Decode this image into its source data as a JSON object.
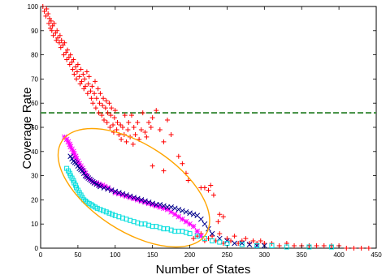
{
  "chart_data": {
    "type": "scatter",
    "xlabel": "Number of States",
    "ylabel": "Coverage Rate",
    "xlim": [
      0,
      450
    ],
    "ylim": [
      0,
      100
    ],
    "xticks": [
      "0",
      "50",
      "100",
      "150",
      "200",
      "250",
      "300",
      "350",
      "400",
      "450"
    ],
    "yticks": [
      "0",
      "10",
      "20",
      "30",
      "40",
      "50",
      "60",
      "70",
      "80",
      "90",
      "100"
    ],
    "grid": false,
    "series": [
      {
        "marker": "plus",
        "color": "#ff0000",
        "points": [
          [
            3,
            100
          ],
          [
            5,
            98
          ],
          [
            7,
            96
          ],
          [
            8,
            99
          ],
          [
            10,
            97
          ],
          [
            11,
            93
          ],
          [
            12,
            95
          ],
          [
            13,
            91
          ],
          [
            14,
            94
          ],
          [
            15,
            90
          ],
          [
            16,
            92
          ],
          [
            17,
            88
          ],
          [
            18,
            93
          ],
          [
            20,
            89
          ],
          [
            21,
            86
          ],
          [
            22,
            90
          ],
          [
            23,
            87
          ],
          [
            25,
            85
          ],
          [
            26,
            88
          ],
          [
            27,
            83
          ],
          [
            28,
            86
          ],
          [
            30,
            84
          ],
          [
            31,
            80
          ],
          [
            32,
            85
          ],
          [
            34,
            81
          ],
          [
            35,
            78
          ],
          [
            36,
            82
          ],
          [
            38,
            79
          ],
          [
            39,
            76
          ],
          [
            40,
            80
          ],
          [
            42,
            77
          ],
          [
            43,
            74
          ],
          [
            44,
            78
          ],
          [
            45,
            72
          ],
          [
            47,
            75
          ],
          [
            48,
            70
          ],
          [
            49,
            73
          ],
          [
            50,
            76
          ],
          [
            52,
            71
          ],
          [
            53,
            68
          ],
          [
            54,
            74
          ],
          [
            55,
            69
          ],
          [
            57,
            72
          ],
          [
            58,
            66
          ],
          [
            59,
            70
          ],
          [
            60,
            67
          ],
          [
            62,
            73
          ],
          [
            63,
            64
          ],
          [
            64,
            68
          ],
          [
            65,
            71
          ],
          [
            67,
            65
          ],
          [
            68,
            62
          ],
          [
            69,
            67
          ],
          [
            70,
            60
          ],
          [
            72,
            64
          ],
          [
            73,
            69
          ],
          [
            74,
            58
          ],
          [
            75,
            62
          ],
          [
            77,
            66
          ],
          [
            78,
            56
          ],
          [
            79,
            60
          ],
          [
            80,
            64
          ],
          [
            82,
            55
          ],
          [
            83,
            59
          ],
          [
            84,
            62
          ],
          [
            85,
            53
          ],
          [
            87,
            58
          ],
          [
            88,
            61
          ],
          [
            89,
            52
          ],
          [
            90,
            56
          ],
          [
            92,
            60
          ],
          [
            93,
            50
          ],
          [
            94,
            55
          ],
          [
            95,
            58
          ],
          [
            97,
            51
          ],
          [
            98,
            48
          ],
          [
            99,
            54
          ],
          [
            100,
            57
          ],
          [
            102,
            49
          ],
          [
            103,
            52
          ],
          [
            105,
            47
          ],
          [
            107,
            51
          ],
          [
            108,
            45
          ],
          [
            110,
            50
          ],
          [
            112,
            47
          ],
          [
            113,
            55
          ],
          [
            115,
            44
          ],
          [
            117,
            49
          ],
          [
            118,
            52
          ],
          [
            120,
            46
          ],
          [
            122,
            55
          ],
          [
            124,
            43
          ],
          [
            125,
            50
          ],
          [
            127,
            47
          ],
          [
            130,
            52
          ],
          [
            132,
            45
          ],
          [
            135,
            49
          ],
          [
            137,
            56
          ],
          [
            140,
            48
          ],
          [
            142,
            46
          ],
          [
            145,
            52
          ],
          [
            148,
            50
          ],
          [
            150,
            54
          ],
          [
            155,
            57
          ],
          [
            160,
            49
          ],
          [
            165,
            44
          ],
          [
            170,
            53
          ],
          [
            175,
            47
          ],
          [
            185,
            38
          ],
          [
            190,
            35
          ],
          [
            195,
            31
          ],
          [
            198,
            28
          ],
          [
            165,
            32
          ],
          [
            150,
            34
          ],
          [
            215,
            25
          ],
          [
            220,
            25
          ],
          [
            225,
            24
          ],
          [
            228,
            26
          ],
          [
            232,
            22
          ],
          [
            240,
            14
          ],
          [
            245,
            13
          ],
          [
            238,
            11
          ],
          [
            205,
            4
          ],
          [
            210,
            5
          ],
          [
            215,
            6
          ],
          [
            220,
            3
          ],
          [
            225,
            4
          ],
          [
            230,
            5
          ],
          [
            235,
            3
          ],
          [
            240,
            6
          ],
          [
            245,
            2
          ],
          [
            250,
            4
          ],
          [
            255,
            3
          ],
          [
            260,
            5
          ],
          [
            265,
            2
          ],
          [
            270,
            3
          ],
          [
            275,
            4
          ],
          [
            280,
            2
          ],
          [
            285,
            3
          ],
          [
            290,
            2
          ],
          [
            295,
            3
          ],
          [
            300,
            2
          ],
          [
            310,
            2
          ],
          [
            320,
            1
          ],
          [
            330,
            2
          ],
          [
            340,
            1
          ],
          [
            350,
            1
          ],
          [
            360,
            1
          ],
          [
            370,
            1
          ],
          [
            380,
            1
          ],
          [
            390,
            1
          ],
          [
            400,
            1
          ],
          [
            410,
            0
          ],
          [
            420,
            0
          ],
          [
            430,
            0
          ],
          [
            440,
            0
          ]
        ]
      },
      {
        "marker": "star",
        "color": "#ff00ff",
        "points": [
          [
            32,
            46
          ],
          [
            35,
            45
          ],
          [
            37,
            44
          ],
          [
            39,
            43
          ],
          [
            40,
            42
          ],
          [
            42,
            41
          ],
          [
            44,
            40
          ],
          [
            45,
            39
          ],
          [
            47,
            38
          ],
          [
            48,
            37
          ],
          [
            50,
            36
          ],
          [
            52,
            35
          ],
          [
            54,
            34
          ],
          [
            56,
            33
          ],
          [
            58,
            32
          ],
          [
            60,
            31
          ],
          [
            62,
            30
          ],
          [
            64,
            29
          ],
          [
            66,
            28.5
          ],
          [
            68,
            28
          ],
          [
            70,
            27.5
          ],
          [
            72,
            27
          ],
          [
            75,
            27
          ],
          [
            78,
            26.5
          ],
          [
            80,
            26
          ],
          [
            83,
            26
          ],
          [
            86,
            25.5
          ],
          [
            90,
            25
          ],
          [
            95,
            24
          ],
          [
            100,
            23
          ],
          [
            105,
            22.5
          ],
          [
            110,
            22
          ],
          [
            115,
            21.5
          ],
          [
            120,
            21
          ],
          [
            125,
            20.5
          ],
          [
            130,
            20
          ],
          [
            135,
            19.5
          ],
          [
            140,
            19
          ],
          [
            145,
            18.5
          ],
          [
            150,
            18
          ],
          [
            155,
            17.5
          ],
          [
            160,
            17
          ],
          [
            165,
            16.5
          ],
          [
            170,
            16
          ],
          [
            175,
            15
          ],
          [
            180,
            14
          ],
          [
            185,
            13
          ],
          [
            190,
            12
          ],
          [
            195,
            11
          ],
          [
            200,
            10
          ],
          [
            205,
            9
          ],
          [
            210,
            7
          ],
          [
            215,
            5
          ]
        ]
      },
      {
        "marker": "x",
        "color": "#00008b",
        "points": [
          [
            40,
            38
          ],
          [
            42,
            37
          ],
          [
            44,
            36
          ],
          [
            46,
            35.5
          ],
          [
            48,
            35
          ],
          [
            50,
            34
          ],
          [
            52,
            33
          ],
          [
            54,
            32.5
          ],
          [
            56,
            32
          ],
          [
            58,
            31
          ],
          [
            60,
            30
          ],
          [
            62,
            29.5
          ],
          [
            64,
            29
          ],
          [
            66,
            28.5
          ],
          [
            68,
            28
          ],
          [
            70,
            27.5
          ],
          [
            72,
            27
          ],
          [
            75,
            26.5
          ],
          [
            78,
            26
          ],
          [
            80,
            25.5
          ],
          [
            85,
            25
          ],
          [
            90,
            24.5
          ],
          [
            95,
            24
          ],
          [
            100,
            23.5
          ],
          [
            105,
            23
          ],
          [
            110,
            22.5
          ],
          [
            115,
            22
          ],
          [
            120,
            21.5
          ],
          [
            125,
            21
          ],
          [
            130,
            20.5
          ],
          [
            135,
            20
          ],
          [
            140,
            19.5
          ],
          [
            145,
            19
          ],
          [
            150,
            18.5
          ],
          [
            155,
            18
          ],
          [
            160,
            18
          ],
          [
            165,
            17.5
          ],
          [
            170,
            17
          ],
          [
            175,
            17
          ],
          [
            180,
            16.5
          ],
          [
            185,
            16
          ],
          [
            190,
            15.5
          ],
          [
            195,
            15
          ],
          [
            200,
            14.5
          ],
          [
            205,
            14
          ],
          [
            210,
            13.5
          ],
          [
            215,
            12
          ],
          [
            220,
            10
          ],
          [
            225,
            8
          ],
          [
            230,
            6
          ],
          [
            240,
            4
          ],
          [
            250,
            3
          ],
          [
            260,
            2
          ],
          [
            270,
            2
          ],
          [
            280,
            1.5
          ],
          [
            290,
            1
          ],
          [
            300,
            1
          ]
        ]
      },
      {
        "marker": "square",
        "color": "#00dddd",
        "points": [
          [
            35,
            33
          ],
          [
            37,
            32
          ],
          [
            39,
            31
          ],
          [
            40,
            30
          ],
          [
            42,
            29
          ],
          [
            44,
            28
          ],
          [
            45,
            27
          ],
          [
            47,
            26
          ],
          [
            48,
            25
          ],
          [
            50,
            24
          ],
          [
            52,
            23
          ],
          [
            54,
            22
          ],
          [
            56,
            21
          ],
          [
            58,
            20
          ],
          [
            60,
            19.5
          ],
          [
            62,
            19
          ],
          [
            65,
            18.5
          ],
          [
            68,
            18
          ],
          [
            70,
            17.5
          ],
          [
            73,
            17
          ],
          [
            76,
            16.5
          ],
          [
            80,
            16
          ],
          [
            84,
            15.5
          ],
          [
            88,
            15
          ],
          [
            92,
            14.5
          ],
          [
            96,
            14
          ],
          [
            100,
            13.5
          ],
          [
            105,
            13
          ],
          [
            110,
            12.5
          ],
          [
            115,
            12
          ],
          [
            120,
            11.5
          ],
          [
            125,
            11
          ],
          [
            130,
            10.5
          ],
          [
            135,
            10
          ],
          [
            140,
            10
          ],
          [
            145,
            9.5
          ],
          [
            150,
            9
          ],
          [
            155,
            9
          ],
          [
            160,
            8.5
          ],
          [
            165,
            8
          ],
          [
            170,
            8
          ],
          [
            175,
            7.5
          ],
          [
            180,
            7
          ],
          [
            185,
            7
          ],
          [
            190,
            7
          ],
          [
            195,
            6.5
          ],
          [
            200,
            6
          ],
          [
            210,
            5
          ],
          [
            220,
            4
          ],
          [
            230,
            3
          ],
          [
            240,
            2.5
          ],
          [
            250,
            2
          ],
          [
            270,
            1.5
          ],
          [
            290,
            1
          ],
          [
            310,
            1
          ],
          [
            330,
            0.5
          ],
          [
            360,
            0.5
          ],
          [
            390,
            0.5
          ]
        ]
      }
    ],
    "reference_line": {
      "y": 56,
      "style": "dashed",
      "color": "#3c8c3c"
    },
    "annotation_ellipse": {
      "cx": 125,
      "cy": 25,
      "rx": 115,
      "ry": 18,
      "rotate_deg": 33,
      "color": "#ffa500"
    }
  }
}
